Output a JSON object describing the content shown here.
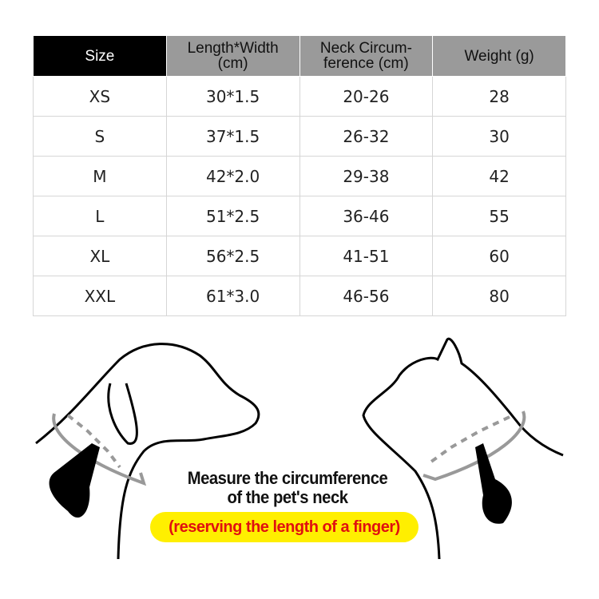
{
  "table": {
    "headers": [
      "Size",
      "Length*Width (cm)",
      "Neck Circum-ference (cm)",
      "Weight (g)"
    ],
    "rows": [
      [
        "XS",
        "30*1.5",
        "20-26",
        "28"
      ],
      [
        "S",
        "37*1.5",
        "26-32",
        "30"
      ],
      [
        "M",
        "42*2.0",
        "29-38",
        "42"
      ],
      [
        "L",
        "51*2.5",
        "36-46",
        "55"
      ],
      [
        "XL",
        "56*2.5",
        "41-51",
        "60"
      ],
      [
        "XXL",
        "61*3.0",
        "46-56",
        "80"
      ]
    ]
  },
  "instructions": {
    "line1": "Measure the circumference",
    "line2": "of the pet's neck",
    "note": "(reserving the length of a finger)"
  },
  "colors": {
    "header_dark": "#000000",
    "header_gray": "#9a9a9a",
    "note_bg": "#ffef00",
    "note_text": "#e01010"
  }
}
